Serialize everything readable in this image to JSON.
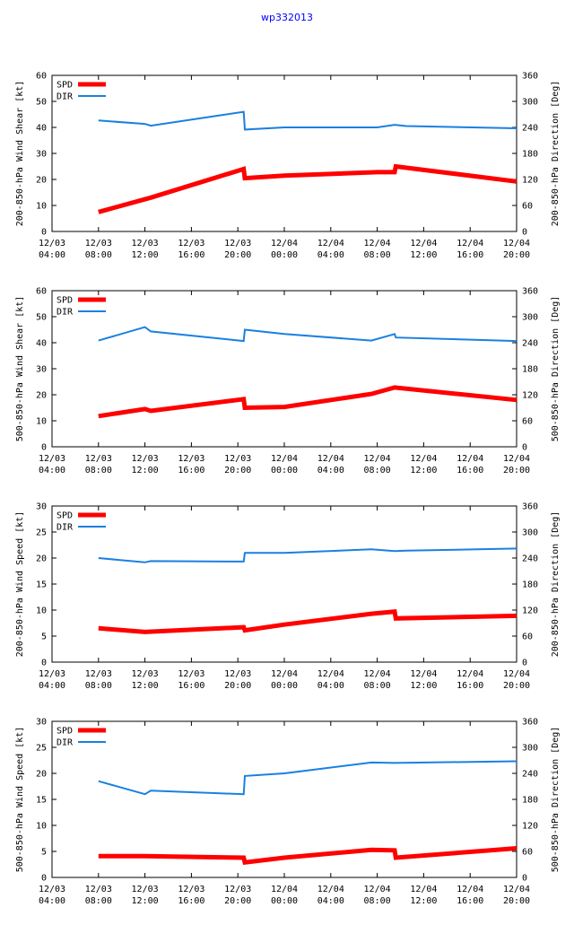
{
  "page": {
    "title": "wp332013"
  },
  "colors": {
    "spd": "#ff0000",
    "dir": "#1a80e0",
    "axis": "#000000",
    "title": "#0000ff"
  },
  "x_ticks": [
    {
      "line1": "12/03",
      "line2": "04:00"
    },
    {
      "line1": "12/03",
      "line2": "08:00"
    },
    {
      "line1": "12/03",
      "line2": "12:00"
    },
    {
      "line1": "12/03",
      "line2": "16:00"
    },
    {
      "line1": "12/03",
      "line2": "20:00"
    },
    {
      "line1": "12/04",
      "line2": "00:00"
    },
    {
      "line1": "12/04",
      "line2": "04:00"
    },
    {
      "line1": "12/04",
      "line2": "08:00"
    },
    {
      "line1": "12/04",
      "line2": "12:00"
    },
    {
      "line1": "12/04",
      "line2": "16:00"
    },
    {
      "line1": "12/04",
      "line2": "20:00"
    }
  ],
  "chart_data": [
    {
      "type": "line",
      "ylabel": "200-850-hPa Wind Shear [kt]",
      "y2label": "200-850-hPa Direction [Deg]",
      "ylim": [
        0,
        60
      ],
      "y2lim": [
        0,
        360
      ],
      "yticks": [
        0,
        10,
        20,
        30,
        40,
        50,
        60
      ],
      "y2ticks": [
        0,
        60,
        120,
        180,
        240,
        300,
        360
      ],
      "xlim": [
        4,
        44
      ],
      "legend": [
        {
          "key": "spd",
          "label": "SPD"
        },
        {
          "key": "dir",
          "label": "DIR"
        }
      ],
      "series": [
        {
          "name": "SPD",
          "axis": "left",
          "x": [
            8,
            12.5,
            20.5,
            20.6,
            24,
            32,
            33.5,
            33.6,
            44
          ],
          "y": [
            7.5,
            13,
            24,
            20.5,
            21.5,
            22.8,
            22.8,
            25,
            19.2
          ]
        },
        {
          "name": "DIR",
          "axis": "right",
          "x": [
            8,
            12,
            12.5,
            20.5,
            20.6,
            24,
            32,
            33.5,
            34.5,
            44
          ],
          "y": [
            256,
            248,
            244,
            276,
            235,
            240,
            240,
            246,
            243,
            238
          ]
        }
      ]
    },
    {
      "type": "line",
      "ylabel": "500-850-hPa Wind Shear [kt]",
      "y2label": "500-850-hPa Direction [Deg]",
      "ylim": [
        0,
        60
      ],
      "y2lim": [
        0,
        360
      ],
      "yticks": [
        0,
        10,
        20,
        30,
        40,
        50,
        60
      ],
      "y2ticks": [
        0,
        60,
        120,
        180,
        240,
        300,
        360
      ],
      "xlim": [
        4,
        44
      ],
      "legend": [
        {
          "key": "spd",
          "label": "SPD"
        },
        {
          "key": "dir",
          "label": "DIR"
        }
      ],
      "series": [
        {
          "name": "SPD",
          "axis": "left",
          "x": [
            8,
            12,
            12.5,
            20.5,
            20.6,
            24,
            31.5,
            33.5,
            44
          ],
          "y": [
            11.8,
            14.5,
            13.8,
            18.3,
            15,
            15.3,
            20.3,
            22.8,
            18
          ],
          "note": "thick"
        },
        {
          "name": "DIR",
          "axis": "right",
          "x": [
            8,
            12,
            12.5,
            20.5,
            20.6,
            24,
            31.5,
            33.5,
            33.6,
            44
          ],
          "y": [
            245,
            276,
            266,
            244,
            270,
            260,
            245,
            260,
            252,
            244
          ]
        }
      ]
    },
    {
      "type": "line",
      "ylabel": "200-850-hPa Wind Speed [kt]",
      "y2label": "200-850-hPa Direction [Deg]",
      "ylim": [
        0,
        30
      ],
      "y2lim": [
        0,
        360
      ],
      "yticks": [
        0,
        5,
        10,
        15,
        20,
        25,
        30
      ],
      "y2ticks": [
        0,
        60,
        120,
        180,
        240,
        300,
        360
      ],
      "xlim": [
        4,
        44
      ],
      "legend": [
        {
          "key": "spd",
          "label": "SPD"
        },
        {
          "key": "dir",
          "label": "DIR"
        }
      ],
      "series": [
        {
          "name": "SPD",
          "axis": "left",
          "x": [
            8,
            12,
            20.5,
            20.6,
            24,
            31.5,
            33.5,
            33.6,
            44
          ],
          "y": [
            6.5,
            5.8,
            6.7,
            6.1,
            7.2,
            9.3,
            9.7,
            8.4,
            8.9
          ]
        },
        {
          "name": "DIR",
          "axis": "right",
          "x": [
            8,
            12,
            12.5,
            20.5,
            20.6,
            24,
            31.5,
            33.5,
            34.5,
            44
          ],
          "y": [
            240,
            230,
            233,
            232,
            252,
            252,
            260,
            256,
            257,
            262
          ]
        }
      ]
    },
    {
      "type": "line",
      "ylabel": "500-850-hPa Wind Speed [kt]",
      "y2label": "500-850-hPa Direction [Deg]",
      "ylim": [
        0,
        30
      ],
      "y2lim": [
        0,
        360
      ],
      "yticks": [
        0,
        5,
        10,
        15,
        20,
        25,
        30
      ],
      "y2ticks": [
        0,
        60,
        120,
        180,
        240,
        300,
        360
      ],
      "xlim": [
        4,
        44
      ],
      "legend": [
        {
          "key": "spd",
          "label": "SPD"
        },
        {
          "key": "dir",
          "label": "DIR"
        }
      ],
      "series": [
        {
          "name": "SPD",
          "axis": "left",
          "x": [
            8,
            12,
            20.5,
            20.6,
            24,
            31.5,
            33.5,
            33.6,
            44
          ],
          "y": [
            4.1,
            4.1,
            3.8,
            2.9,
            3.8,
            5.3,
            5.2,
            3.8,
            5.6
          ]
        },
        {
          "name": "DIR",
          "axis": "right",
          "x": [
            8,
            12,
            12.5,
            20.5,
            20.6,
            24,
            31.5,
            33.5,
            44
          ],
          "y": [
            222,
            192,
            200,
            192,
            234,
            240,
            265,
            264,
            268
          ]
        }
      ]
    }
  ]
}
